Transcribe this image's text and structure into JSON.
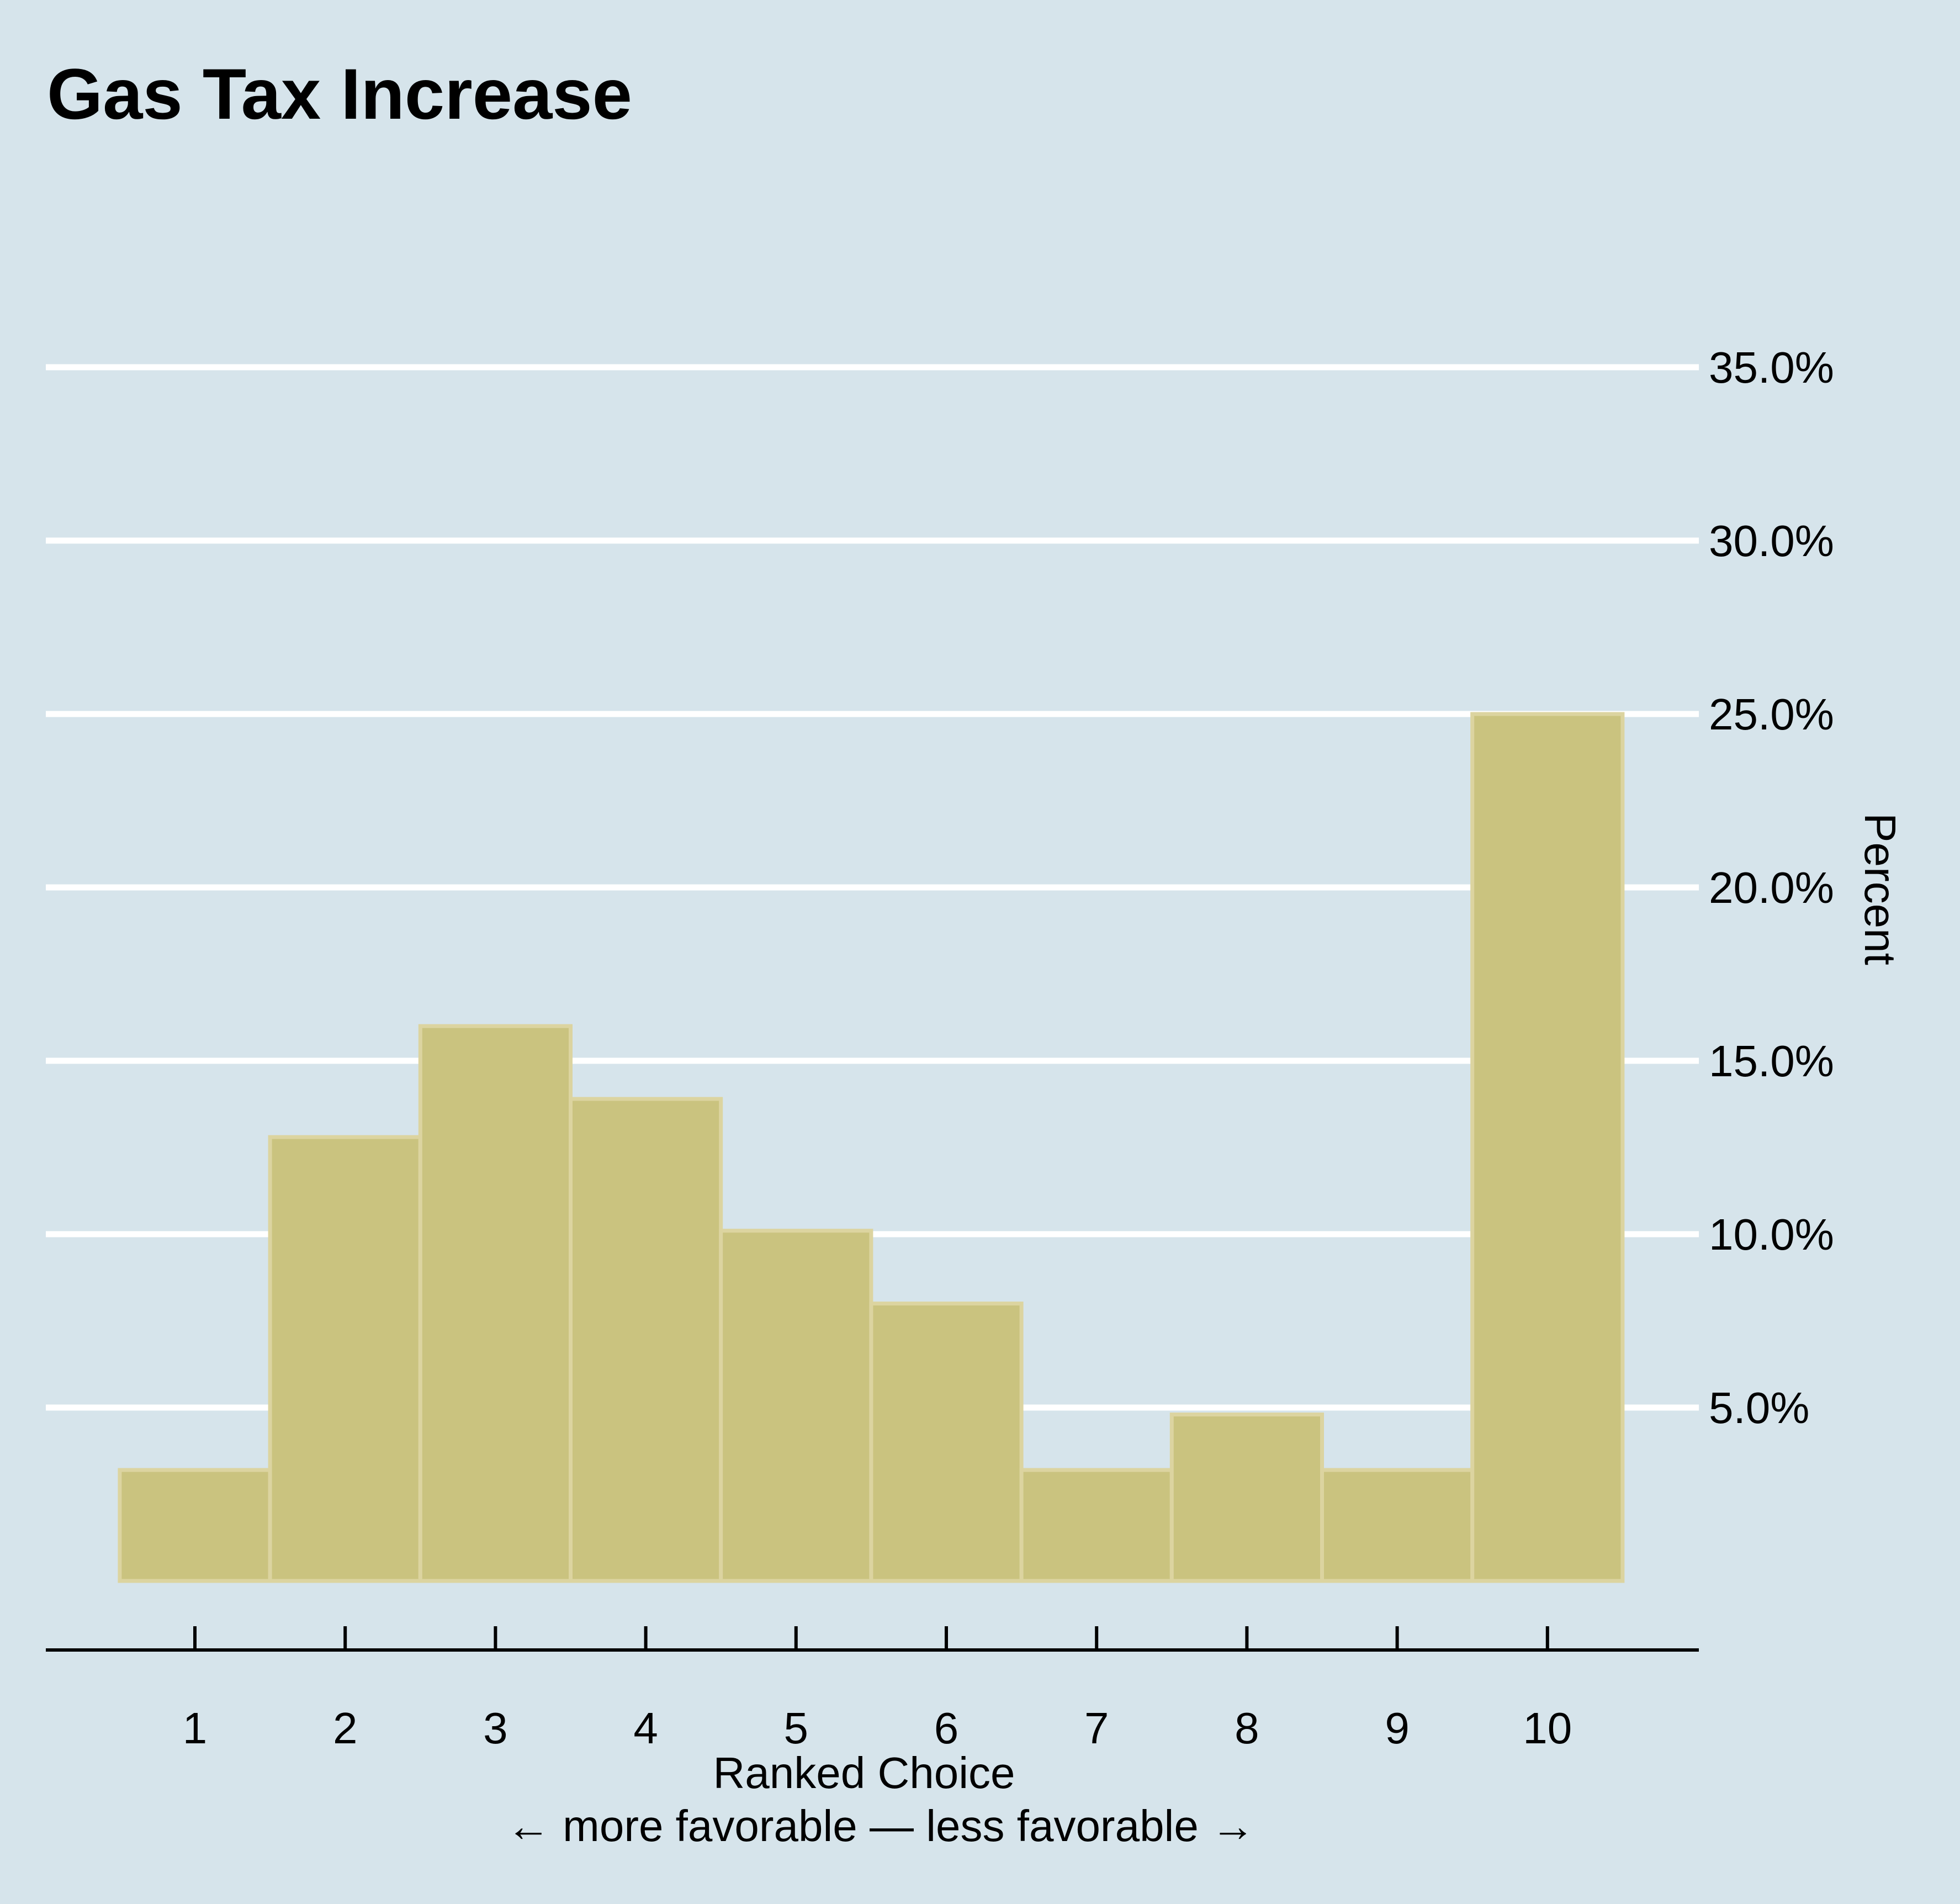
{
  "chart_data": {
    "type": "bar",
    "title": "Gas Tax Increase",
    "xlabel": "Ranked Choice",
    "xlabel_note": "← more favorable — less favorable →",
    "ylabel": "Percent",
    "categories": [
      "1",
      "2",
      "3",
      "4",
      "5",
      "6",
      "7",
      "8",
      "9",
      "10"
    ],
    "values": [
      3.2,
      12.8,
      16.0,
      13.9,
      10.1,
      8.0,
      3.2,
      4.8,
      3.2,
      25.0
    ],
    "ylim": [
      0,
      35
    ],
    "yticks": [
      5,
      10,
      15,
      20,
      25,
      30,
      35
    ],
    "ytick_labels": [
      "5.0%",
      "10.0%",
      "15.0%",
      "20.0%",
      "25.0%",
      "30.0%",
      "35.0%"
    ],
    "y_axis_position": "right",
    "grid": true,
    "legend": "none",
    "colors": {
      "background": "#d6e4eb",
      "bar_fill": "#cac37f",
      "bar_edge": "#dcd4a0",
      "grid": "#ffffff"
    }
  }
}
